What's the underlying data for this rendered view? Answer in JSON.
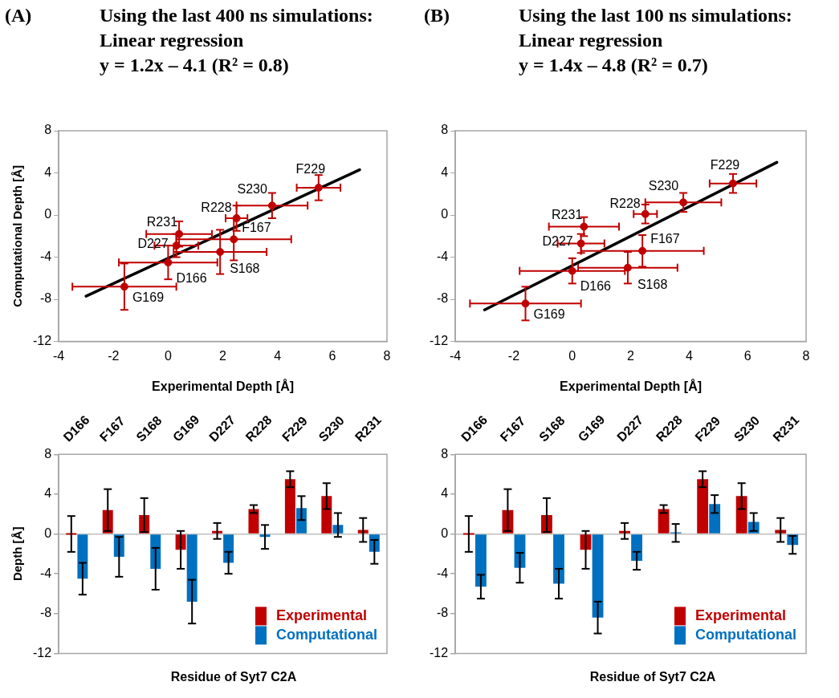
{
  "chart_data": [
    {
      "type": "scatter",
      "title": "Using the last 400 ns simulations:",
      "subtitle": "Linear regression",
      "xlabel": "Experimental Depth [Å]",
      "ylabel": "Computational Depth [Å]",
      "xlim": [
        -4,
        8
      ],
      "xticks": [
        -4,
        -2,
        0,
        2,
        4,
        6,
        8
      ],
      "ylim": [
        -12,
        8
      ],
      "yticks": [
        -12,
        -8,
        -4,
        0,
        4,
        8
      ],
      "marker": "circle",
      "series": [
        {
          "type": "scatter",
          "color": "#c00000",
          "x": [
            0,
            2.4,
            1.9,
            -1.6,
            0.3,
            2.5,
            5.5,
            3.8,
            0.4
          ],
          "values": [
            -4.5,
            -2.3,
            -3.5,
            -6.8,
            -2.9,
            -0.3,
            2.6,
            0.9,
            -1.8
          ],
          "errors": [
            1.6,
            2.0,
            2.1,
            2.2,
            1.1,
            1.2,
            1.2,
            1.2,
            1.2
          ],
          "xerrors": [
            1.8,
            2.1,
            1.7,
            1.9,
            0.8,
            0.4,
            0.8,
            1.3,
            1.2
          ]
        },
        {
          "type": "line",
          "color": "#000000",
          "marker": "none",
          "x": [
            -3,
            7
          ],
          "values": [
            -7.7,
            4.3
          ]
        }
      ],
      "annotations": [
        "(A)",
        "y = 1.2x – 4.1 (R² = 0.8)",
        {
          "text": "D166",
          "x": 0,
          "y": -4.5
        },
        {
          "text": "F167",
          "x": 2.4,
          "y": -2.3
        },
        {
          "text": "S168",
          "x": 1.9,
          "y": -3.5
        },
        {
          "text": "G169",
          "x": -1.6,
          "y": -6.8
        },
        {
          "text": "D227",
          "x": 0.3,
          "y": -2.9
        },
        {
          "text": "R228",
          "x": 2.5,
          "y": -0.3
        },
        {
          "text": "F229",
          "x": 5.5,
          "y": 2.6
        },
        {
          "text": "S230",
          "x": 3.8,
          "y": 0.9
        },
        {
          "text": "R231",
          "x": 0.4,
          "y": -1.8
        }
      ]
    },
    {
      "type": "scatter",
      "title": "Using the last 100 ns simulations:",
      "subtitle": "Linear regression",
      "xlabel": "Experimental Depth [Å]",
      "xlim": [
        -4,
        8
      ],
      "xticks": [
        -4,
        -2,
        0,
        2,
        4,
        6,
        8
      ],
      "ylim": [
        -12,
        8
      ],
      "yticks": [
        -12,
        -8,
        -4,
        0,
        4,
        8
      ],
      "marker": "circle",
      "series": [
        {
          "type": "scatter",
          "color": "#c00000",
          "x": [
            0,
            2.4,
            1.9,
            -1.6,
            0.3,
            2.5,
            5.5,
            3.8,
            0.4
          ],
          "values": [
            -5.3,
            -3.4,
            -5.0,
            -8.4,
            -2.7,
            0.1,
            3.0,
            1.2,
            -1.1
          ],
          "errors": [
            1.2,
            1.5,
            1.5,
            1.6,
            0.9,
            0.9,
            0.9,
            0.9,
            0.9
          ],
          "xerrors": [
            1.8,
            2.1,
            1.7,
            1.9,
            0.8,
            0.4,
            0.8,
            1.3,
            1.2
          ]
        },
        {
          "type": "line",
          "color": "#000000",
          "marker": "none",
          "x": [
            -3,
            7
          ],
          "values": [
            -9.0,
            5.0
          ]
        }
      ],
      "annotations": [
        "(B)",
        "y = 1.4x – 4.8 (R² = 0.7)",
        {
          "text": "D166",
          "x": 0,
          "y": -5.3
        },
        {
          "text": "F167",
          "x": 2.4,
          "y": -3.4
        },
        {
          "text": "S168",
          "x": 1.9,
          "y": -5.0
        },
        {
          "text": "G169",
          "x": -1.6,
          "y": -8.4
        },
        {
          "text": "D227",
          "x": 0.3,
          "y": -2.7
        },
        {
          "text": "R228",
          "x": 2.5,
          "y": 0.1
        },
        {
          "text": "F229",
          "x": 5.5,
          "y": 3.0
        },
        {
          "text": "S230",
          "x": 3.8,
          "y": 1.2
        },
        {
          "text": "R231",
          "x": 0.4,
          "y": -1.1
        }
      ]
    },
    {
      "type": "bar",
      "xlabel": "Residue of Syt7 C2A",
      "ylabel": "Depth [Å]",
      "categories": [
        "D166",
        "F167",
        "S168",
        "G169",
        "D227",
        "R228",
        "F229",
        "S230",
        "R231"
      ],
      "ylim": [
        -12,
        8
      ],
      "yticks": [
        -12,
        -8,
        -4,
        0,
        4,
        8
      ],
      "legend": "bottom right",
      "series": [
        {
          "name": "Experimental",
          "color": "#c00000",
          "values": [
            0,
            2.4,
            1.9,
            -1.6,
            0.3,
            2.5,
            5.5,
            3.8,
            0.4
          ],
          "errors": [
            1.8,
            2.1,
            1.7,
            1.9,
            0.8,
            0.4,
            0.8,
            1.3,
            1.2
          ]
        },
        {
          "name": "Computational",
          "color": "#0070c0",
          "values": [
            -4.5,
            -2.3,
            -3.5,
            -6.8,
            -2.9,
            -0.3,
            2.6,
            0.9,
            -1.8
          ],
          "errors": [
            1.6,
            2.0,
            2.1,
            2.2,
            1.1,
            1.2,
            1.2,
            1.2,
            1.2
          ]
        }
      ]
    },
    {
      "type": "bar",
      "xlabel": "Residue of Syt7 C2A",
      "categories": [
        "D166",
        "F167",
        "S168",
        "G169",
        "D227",
        "R228",
        "F229",
        "S230",
        "R231"
      ],
      "ylim": [
        -12,
        8
      ],
      "yticks": [
        -12,
        -8,
        -4,
        0,
        4,
        8
      ],
      "legend": "bottom right",
      "series": [
        {
          "name": "Experimental",
          "color": "#c00000",
          "values": [
            0,
            2.4,
            1.9,
            -1.6,
            0.3,
            2.5,
            5.5,
            3.8,
            0.4
          ],
          "errors": [
            1.8,
            2.1,
            1.7,
            1.9,
            0.8,
            0.4,
            0.8,
            1.3,
            1.2
          ]
        },
        {
          "name": "Computational",
          "color": "#0070c0",
          "values": [
            -5.3,
            -3.4,
            -5.0,
            -8.4,
            -2.7,
            0.1,
            3.0,
            1.2,
            -1.1
          ],
          "errors": [
            1.2,
            1.5,
            1.5,
            1.6,
            0.9,
            0.9,
            0.9,
            0.9,
            0.9
          ]
        }
      ]
    }
  ]
}
